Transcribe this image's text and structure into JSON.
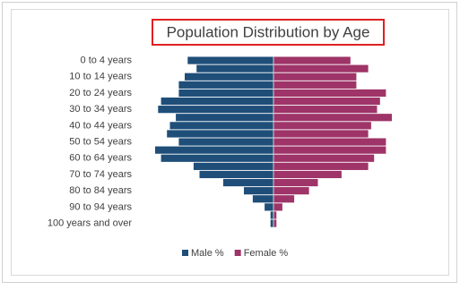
{
  "chart_data": {
    "type": "pyramid",
    "title": "Population Distribution by Age",
    "categories": [
      "0 to 4 years",
      null,
      "10 to 14 years",
      null,
      "20 to 24 years",
      null,
      "30 to 34 years",
      null,
      "40 to 44 years",
      null,
      "50 to 54 years",
      null,
      "60 to 64 years",
      null,
      "70 to 74 years",
      null,
      "80 to 84 years",
      null,
      "90 to 94 years",
      null,
      "100 years and over"
    ],
    "series": [
      {
        "name": "Male %",
        "color": "#1f4e79",
        "values": [
          2.9,
          2.6,
          3.0,
          3.2,
          3.2,
          3.8,
          3.9,
          3.3,
          3.5,
          3.6,
          3.2,
          4.0,
          3.8,
          2.7,
          2.5,
          1.7,
          1.0,
          0.7,
          0.3,
          0.1,
          0.1
        ]
      },
      {
        "name": "Female %",
        "color": "#9e3468",
        "values": [
          2.6,
          3.2,
          2.8,
          2.8,
          3.8,
          3.6,
          3.5,
          4.0,
          3.3,
          3.2,
          3.8,
          3.8,
          3.4,
          3.2,
          2.3,
          1.5,
          1.2,
          0.7,
          0.3,
          0.1,
          0.1
        ]
      }
    ],
    "legend": "bottom"
  }
}
